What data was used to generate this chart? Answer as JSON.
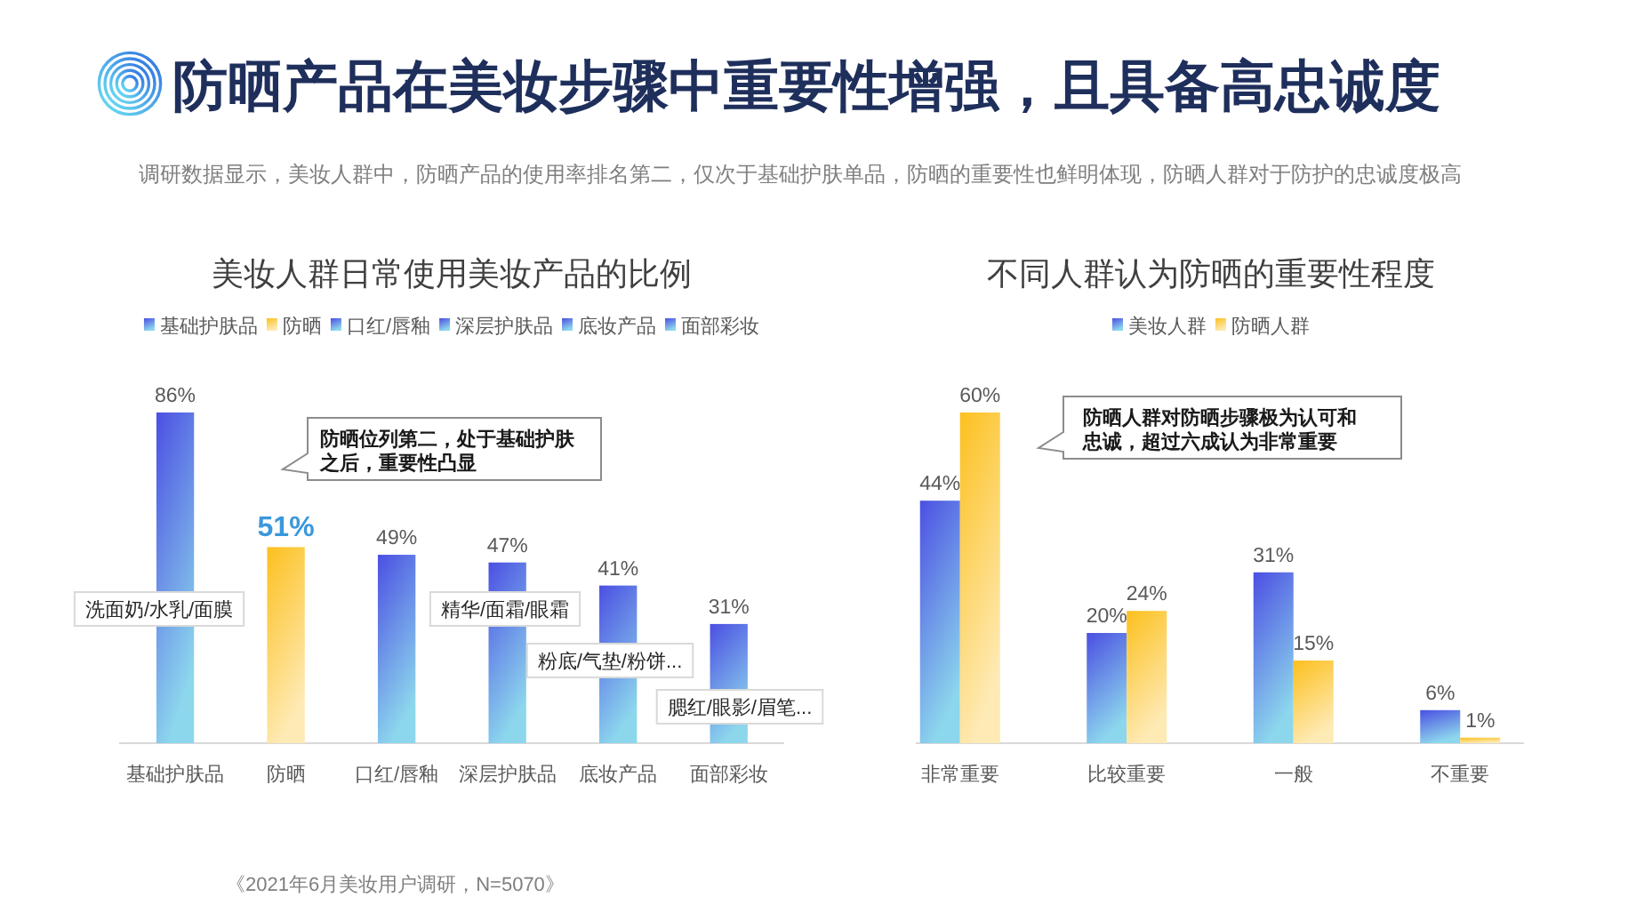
{
  "chart_data": [
    {
      "type": "other",
      "title": "防晒产品在美妆步骤中重要性增强，且具备高忠诚度",
      "subtitle": "调研数据显示，美妆人群中，防晒产品的使用率排名第二，仅次于基础护肤单品，防晒的重要性也鲜明体现，防晒人群对于防护的忠诚度极高",
      "annotations": [
        "《2021年6月美妆用户调研，N=5070》"
      ]
    },
    {
      "type": "bar",
      "title": "美妆人群日常使用美妆产品的比例",
      "categories": [
        "基础护肤品",
        "防晒",
        "口红/唇釉",
        "深层护肤品",
        "底妆产品",
        "面部彩妆"
      ],
      "stacked": true,
      "series": [
        {
          "name": "基础护肤品",
          "color": "#4b4fe2",
          "values": [
            86,
            null,
            null,
            null,
            null,
            null
          ],
          "value_labels": [
            "86%",
            null,
            null,
            null,
            null,
            null
          ]
        },
        {
          "name": "防晒",
          "color": "#fcc01e",
          "values": [
            null,
            51,
            null,
            null,
            null,
            null
          ],
          "value_labels": [
            null,
            "51%",
            null,
            null,
            null,
            null
          ]
        },
        {
          "name": "口红/唇釉",
          "color": "#4b4fe2",
          "values": [
            null,
            null,
            49,
            null,
            null,
            null
          ],
          "value_labels": [
            null,
            null,
            "49%",
            null,
            null,
            null
          ]
        },
        {
          "name": "深层护肤品",
          "color": "#4b4fe2",
          "values": [
            null,
            null,
            null,
            47,
            null,
            null
          ],
          "value_labels": [
            null,
            null,
            null,
            "47%",
            null,
            null
          ]
        },
        {
          "name": "底妆产品",
          "color": "#4b4fe2",
          "values": [
            null,
            null,
            null,
            null,
            41,
            null
          ],
          "value_labels": [
            null,
            null,
            null,
            null,
            "41%",
            null
          ]
        },
        {
          "name": "面部彩妆",
          "color": "#4b4fe2",
          "values": [
            null,
            null,
            null,
            null,
            null,
            31
          ],
          "value_labels": [
            null,
            null,
            null,
            null,
            null,
            "31%"
          ]
        }
      ],
      "legend": "top",
      "annotations": [
        "防晒位列第二，处于基础护肤之后，重要性凸显",
        "洗面奶/水乳/面膜",
        "精华/面霜/眼霜",
        "粉底/气垫/粉饼...",
        "腮红/眼影/眉笔..."
      ]
    },
    {
      "type": "bar",
      "title": "不同人群认为防晒的重要性程度",
      "categories": [
        "非常重要",
        "比较重要",
        "一般",
        "不重要"
      ],
      "series": [
        {
          "name": "美妆人群",
          "color": "#4b4fe2",
          "values": [
            44,
            20,
            31,
            6
          ],
          "value_labels": [
            "44%",
            "20%",
            "31%",
            "6%"
          ]
        },
        {
          "name": "防晒人群",
          "color": "#fcc01e",
          "values": [
            60,
            24,
            15,
            1
          ],
          "value_labels": [
            "60%",
            "24%",
            "15%",
            "1%"
          ]
        }
      ],
      "legend": "top",
      "annotations": [
        "防晒人群对防晒步骤极为认可和忠诚，超过六成认为非常重要"
      ]
    }
  ]
}
